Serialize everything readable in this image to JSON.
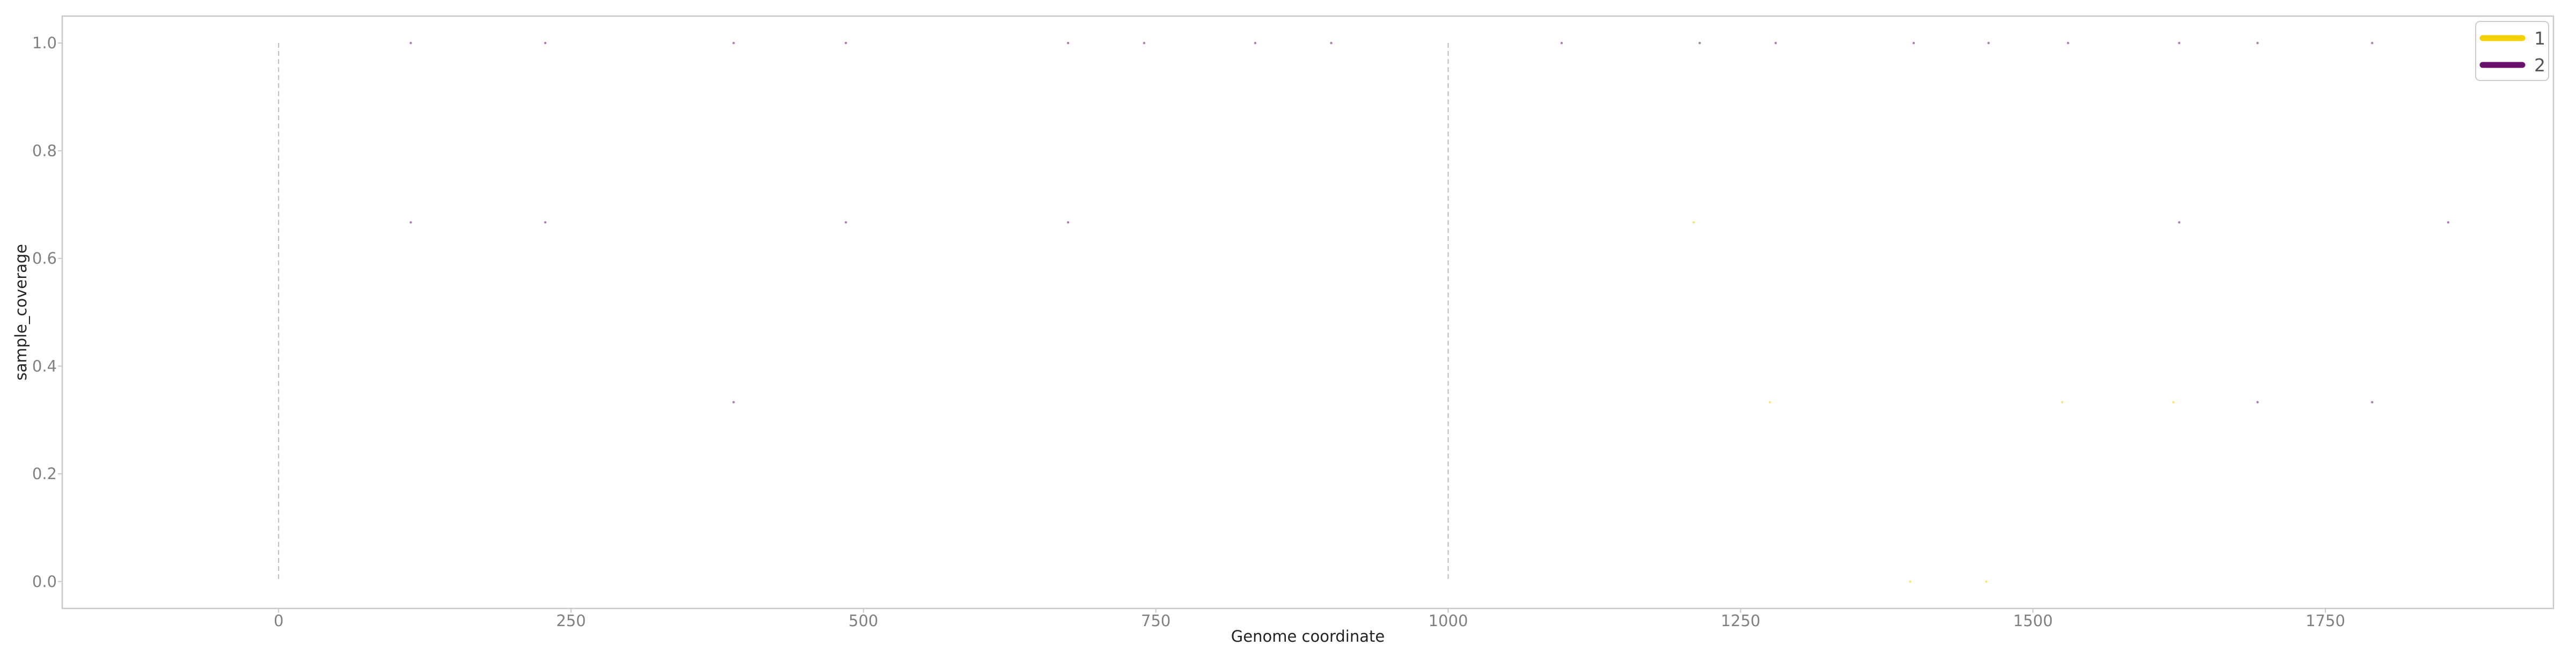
{
  "chart_data": {
    "type": "scatter",
    "title": "",
    "xlabel": "Genome coordinate",
    "ylabel": "sample_coverage",
    "xlim": [
      -185,
      1945
    ],
    "ylim": [
      -0.05,
      1.05
    ],
    "x_ticks": [
      0,
      250,
      500,
      750,
      1000,
      1250,
      1500,
      1750
    ],
    "y_ticks": [
      0.0,
      0.2,
      0.4,
      0.6,
      0.8,
      1.0
    ],
    "grid": false,
    "legend_position": "top-right",
    "vlines": [
      {
        "x": 0,
        "color": "#bbbbbb",
        "style": "dashed"
      },
      {
        "x": 1000,
        "color": "#bbbbbb",
        "style": "dashed"
      }
    ],
    "series": [
      {
        "name": "1",
        "color": "#f5d000",
        "points": [
          {
            "x": 1210,
            "y": 0.667
          },
          {
            "x": 1275,
            "y": 0.333
          },
          {
            "x": 1395,
            "y": 0.0
          },
          {
            "x": 1460,
            "y": 0.0
          },
          {
            "x": 1525,
            "y": 0.333
          },
          {
            "x": 1620,
            "y": 0.333
          }
        ]
      },
      {
        "name": "2",
        "color": "#6a0f6e",
        "points": [
          {
            "x": 113,
            "y": 1.0
          },
          {
            "x": 228,
            "y": 1.0
          },
          {
            "x": 389,
            "y": 1.0
          },
          {
            "x": 485,
            "y": 1.0
          },
          {
            "x": 675,
            "y": 1.0
          },
          {
            "x": 740,
            "y": 1.0
          },
          {
            "x": 835,
            "y": 1.0
          },
          {
            "x": 900,
            "y": 1.0
          },
          {
            "x": 1097,
            "y": 1.0
          },
          {
            "x": 1215,
            "y": 1.0
          },
          {
            "x": 1280,
            "y": 1.0
          },
          {
            "x": 1398,
            "y": 1.0
          },
          {
            "x": 1462,
            "y": 1.0
          },
          {
            "x": 1530,
            "y": 1.0
          },
          {
            "x": 1625,
            "y": 1.0
          },
          {
            "x": 1692,
            "y": 1.0
          },
          {
            "x": 1790,
            "y": 1.0
          },
          {
            "x": 113,
            "y": 0.667
          },
          {
            "x": 228,
            "y": 0.667
          },
          {
            "x": 485,
            "y": 0.667
          },
          {
            "x": 675,
            "y": 0.667
          },
          {
            "x": 1625,
            "y": 0.667
          },
          {
            "x": 1855,
            "y": 0.667
          },
          {
            "x": 389,
            "y": 0.333
          },
          {
            "x": 1692,
            "y": 0.333
          },
          {
            "x": 1790,
            "y": 0.333
          }
        ]
      }
    ]
  }
}
